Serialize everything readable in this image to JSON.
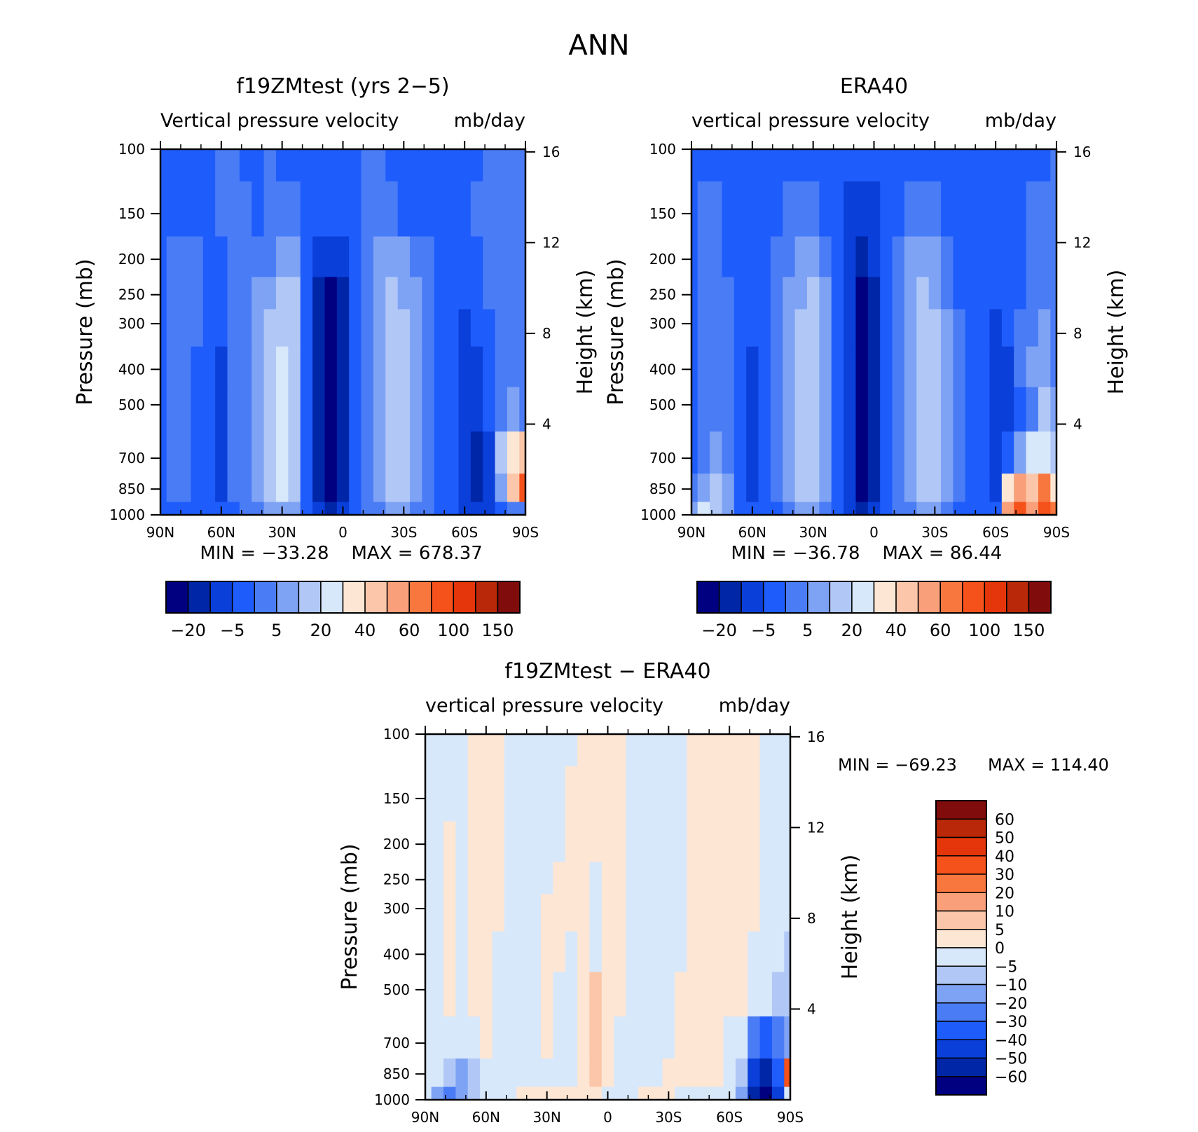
{
  "figure": {
    "title": "ANN"
  },
  "colors": {
    "model_palette": [
      "#000080",
      "#0026a8",
      "#0a3fd9",
      "#1f5cfc",
      "#4a7cf6",
      "#7fa3f4",
      "#b1c8f7",
      "#d8e8fb",
      "#fde6d3",
      "#fbc6a9",
      "#f9a07a",
      "#f8773f",
      "#f5511b",
      "#e4360a",
      "#b92808",
      "#810c0c"
    ],
    "diff_palette": [
      "#000080",
      "#0026a8",
      "#0a3fd9",
      "#1f5cfc",
      "#4a7cf6",
      "#7fa3f4",
      "#b1c8f7",
      "#d8e8fb",
      "#fde6d3",
      "#fbc6a9",
      "#f9a07a",
      "#f8773f",
      "#f5511b",
      "#e4360a",
      "#b92808",
      "#810c0c"
    ],
    "missing": "#ffffff"
  },
  "chart_data": [
    {
      "type": "heatmap",
      "title": "f19ZMtest (yrs 2−5)",
      "subtitle_left": "Vertical pressure velocity",
      "subtitle_right": "mb/day",
      "ylabel": "Pressure (mb)",
      "ylabel_right": "Height (km)",
      "x_ticks": [
        "90N",
        "60N",
        "30N",
        "0",
        "30S",
        "60S",
        "90S"
      ],
      "y_ticks": [
        "100",
        "150",
        "200",
        "250",
        "300",
        "400",
        "500",
        "700",
        "850",
        "1000"
      ],
      "y_right_ticks": [
        "16",
        "12",
        "8",
        "4"
      ],
      "min_label": "MIN = −33.28",
      "max_label": "MAX = 678.37",
      "colorbar_labels": [
        "−20",
        "−5",
        "5",
        "20",
        "40",
        "60",
        "100",
        "150"
      ],
      "latitudes": [
        90,
        84,
        78,
        72,
        66,
        60,
        54,
        48,
        42,
        36,
        30,
        24,
        18,
        12,
        6,
        0,
        -6,
        -12,
        -18,
        -24,
        -30,
        -36,
        -42,
        -48,
        -54,
        -60,
        -66,
        -72,
        -78,
        -84,
        -90
      ],
      "pressure_levels": [
        100,
        150,
        200,
        250,
        300,
        400,
        500,
        700,
        850,
        1000
      ],
      "bin_index": [
        [
          3,
          3,
          3,
          3,
          3,
          4,
          4,
          3,
          3,
          4,
          3,
          3,
          3,
          3,
          3,
          3,
          3,
          4,
          4,
          3,
          3,
          3,
          3,
          3,
          3,
          3,
          3,
          4,
          4,
          4,
          4
        ],
        [
          3,
          3,
          3,
          3,
          3,
          4,
          4,
          4,
          3,
          4,
          4,
          4,
          3,
          3,
          3,
          3,
          3,
          4,
          4,
          4,
          3,
          3,
          3,
          3,
          3,
          3,
          4,
          4,
          4,
          4,
          4
        ],
        [
          3,
          4,
          4,
          4,
          3,
          3,
          4,
          4,
          4,
          4,
          5,
          5,
          3,
          2,
          2,
          2,
          3,
          4,
          5,
          5,
          5,
          4,
          4,
          3,
          3,
          3,
          3,
          4,
          4,
          4,
          4
        ],
        [
          3,
          4,
          4,
          4,
          3,
          3,
          4,
          4,
          5,
          5,
          6,
          6,
          3,
          1,
          0,
          1,
          3,
          4,
          5,
          6,
          5,
          5,
          4,
          3,
          3,
          3,
          3,
          4,
          4,
          4,
          4
        ],
        [
          3,
          4,
          4,
          4,
          3,
          3,
          4,
          4,
          5,
          6,
          6,
          6,
          3,
          1,
          0,
          1,
          3,
          4,
          5,
          6,
          6,
          5,
          4,
          3,
          3,
          2,
          3,
          3,
          4,
          4,
          4
        ],
        [
          3,
          4,
          4,
          3,
          3,
          2,
          4,
          4,
          5,
          6,
          7,
          6,
          3,
          1,
          0,
          1,
          3,
          4,
          5,
          6,
          6,
          5,
          4,
          3,
          3,
          2,
          2,
          3,
          4,
          4,
          4
        ],
        [
          3,
          4,
          4,
          3,
          3,
          2,
          4,
          4,
          5,
          6,
          7,
          6,
          3,
          1,
          0,
          1,
          3,
          4,
          5,
          6,
          6,
          5,
          4,
          3,
          3,
          2,
          2,
          3,
          4,
          5,
          4
        ],
        [
          3,
          4,
          4,
          3,
          3,
          2,
          4,
          4,
          5,
          6,
          7,
          6,
          3,
          1,
          0,
          1,
          3,
          4,
          5,
          6,
          6,
          5,
          4,
          3,
          3,
          2,
          1,
          2,
          6,
          8,
          9
        ],
        [
          3,
          4,
          4,
          3,
          3,
          2,
          4,
          4,
          5,
          6,
          7,
          6,
          3,
          1,
          0,
          1,
          3,
          4,
          5,
          6,
          6,
          5,
          4,
          3,
          3,
          2,
          1,
          2,
          5,
          9,
          12
        ],
        [
          3,
          3,
          3,
          3,
          3,
          3,
          3,
          4,
          4,
          5,
          5,
          5,
          3,
          2,
          1,
          2,
          3,
          4,
          4,
          5,
          5,
          4,
          4,
          3,
          3,
          2,
          2,
          2,
          3,
          4,
          4
        ]
      ]
    },
    {
      "type": "heatmap",
      "title": "ERA40",
      "subtitle_left": "vertical pressure velocity",
      "subtitle_right": "mb/day",
      "ylabel": "Pressure (mb)",
      "ylabel_right": "Height (km)",
      "x_ticks": [
        "90N",
        "60N",
        "30N",
        "0",
        "30S",
        "60S",
        "90S"
      ],
      "y_ticks": [
        "100",
        "150",
        "200",
        "250",
        "300",
        "400",
        "500",
        "700",
        "850",
        "1000"
      ],
      "y_right_ticks": [
        "16",
        "12",
        "8",
        "4"
      ],
      "min_label": "MIN = −36.78",
      "max_label": "MAX =  86.44",
      "colorbar_labels": [
        "−20",
        "−5",
        "5",
        "20",
        "40",
        "60",
        "100",
        "150"
      ],
      "latitudes": [
        90,
        84,
        78,
        72,
        66,
        60,
        54,
        48,
        42,
        36,
        30,
        24,
        18,
        12,
        6,
        0,
        -6,
        -12,
        -18,
        -24,
        -30,
        -36,
        -42,
        -48,
        -54,
        -60,
        -66,
        -72,
        -78,
        -84,
        -90
      ],
      "pressure_levels": [
        100,
        150,
        200,
        250,
        300,
        400,
        500,
        700,
        850,
        1000
      ],
      "bin_index": [
        [
          3,
          3,
          3,
          3,
          3,
          3,
          3,
          3,
          3,
          3,
          3,
          3,
          3,
          3,
          3,
          3,
          3,
          3,
          3,
          3,
          3,
          3,
          3,
          3,
          3,
          3,
          3,
          3,
          3,
          3,
          4
        ],
        [
          3,
          4,
          4,
          3,
          3,
          3,
          3,
          3,
          4,
          4,
          4,
          3,
          3,
          2,
          2,
          2,
          3,
          3,
          4,
          4,
          4,
          3,
          3,
          3,
          3,
          3,
          3,
          3,
          4,
          4,
          4
        ],
        [
          3,
          4,
          4,
          3,
          3,
          3,
          3,
          4,
          4,
          5,
          5,
          4,
          3,
          2,
          1,
          2,
          3,
          4,
          5,
          5,
          5,
          4,
          3,
          3,
          3,
          3,
          3,
          3,
          4,
          4,
          4
        ],
        [
          3,
          4,
          4,
          4,
          3,
          3,
          3,
          4,
          5,
          5,
          6,
          5,
          3,
          2,
          0,
          1,
          3,
          4,
          5,
          6,
          5,
          4,
          3,
          3,
          3,
          3,
          3,
          3,
          4,
          4,
          4
        ],
        [
          3,
          4,
          4,
          4,
          3,
          3,
          3,
          4,
          5,
          6,
          6,
          5,
          3,
          2,
          0,
          1,
          3,
          4,
          5,
          6,
          6,
          5,
          4,
          3,
          3,
          2,
          3,
          4,
          4,
          5,
          4
        ],
        [
          3,
          4,
          4,
          4,
          3,
          2,
          3,
          4,
          5,
          6,
          6,
          5,
          3,
          2,
          0,
          1,
          3,
          4,
          5,
          6,
          6,
          5,
          4,
          3,
          3,
          2,
          2,
          4,
          5,
          5,
          4
        ],
        [
          3,
          4,
          4,
          4,
          3,
          2,
          3,
          4,
          5,
          6,
          6,
          5,
          3,
          2,
          0,
          1,
          3,
          4,
          5,
          6,
          6,
          5,
          4,
          3,
          3,
          2,
          2,
          3,
          4,
          6,
          5
        ],
        [
          3,
          4,
          5,
          4,
          3,
          2,
          3,
          4,
          5,
          6,
          6,
          5,
          3,
          2,
          0,
          1,
          3,
          4,
          5,
          6,
          6,
          5,
          4,
          3,
          3,
          2,
          3,
          5,
          7,
          7,
          6
        ],
        [
          4,
          5,
          6,
          5,
          3,
          2,
          3,
          4,
          5,
          6,
          6,
          5,
          3,
          2,
          0,
          1,
          3,
          4,
          5,
          6,
          6,
          5,
          4,
          3,
          3,
          2,
          8,
          10,
          9,
          11,
          8
        ],
        [
          5,
          7,
          6,
          5,
          3,
          3,
          3,
          3,
          4,
          5,
          5,
          4,
          3,
          2,
          1,
          2,
          3,
          4,
          4,
          5,
          5,
          4,
          3,
          3,
          3,
          3,
          10,
          12,
          10,
          12,
          11
        ]
      ]
    },
    {
      "type": "heatmap",
      "title": "f19ZMtest − ERA40",
      "subtitle_left": "vertical pressure velocity",
      "subtitle_right": "mb/day",
      "ylabel": "Pressure (mb)",
      "ylabel_right": "Height (km)",
      "x_ticks": [
        "90N",
        "60N",
        "30N",
        "0",
        "30S",
        "60S",
        "90S"
      ],
      "y_ticks": [
        "100",
        "150",
        "200",
        "250",
        "300",
        "400",
        "500",
        "700",
        "850",
        "1000"
      ],
      "y_right_ticks": [
        "16",
        "12",
        "8",
        "4"
      ],
      "min_label": "MIN = −69.23",
      "max_label": "MAX = 114.40",
      "colorbar_labels": [
        "60",
        "50",
        "40",
        "30",
        "20",
        "10",
        "5",
        "0",
        "−5",
        "−10",
        "−20",
        "−30",
        "−40",
        "−50",
        "−60"
      ],
      "latitudes": [
        90,
        84,
        78,
        72,
        66,
        60,
        54,
        48,
        42,
        36,
        30,
        24,
        18,
        12,
        6,
        0,
        -6,
        -12,
        -18,
        -24,
        -30,
        -36,
        -42,
        -48,
        -54,
        -60,
        -66,
        -72,
        -78,
        -84,
        -90
      ],
      "pressure_levels": [
        100,
        150,
        200,
        250,
        300,
        400,
        500,
        700,
        850,
        1000
      ],
      "bin_index": [
        [
          7,
          7,
          7,
          7,
          8,
          8,
          8,
          7,
          7,
          7,
          7,
          7,
          7,
          8,
          8,
          8,
          8,
          7,
          7,
          7,
          7,
          7,
          8,
          8,
          8,
          8,
          8,
          8,
          7,
          7,
          7
        ],
        [
          7,
          7,
          7,
          7,
          8,
          8,
          8,
          7,
          7,
          7,
          7,
          7,
          8,
          8,
          8,
          8,
          8,
          7,
          7,
          7,
          7,
          7,
          8,
          8,
          8,
          8,
          8,
          8,
          7,
          7,
          7
        ],
        [
          7,
          7,
          8,
          7,
          8,
          8,
          8,
          7,
          7,
          7,
          7,
          7,
          8,
          8,
          8,
          8,
          8,
          7,
          7,
          7,
          7,
          7,
          8,
          8,
          8,
          8,
          8,
          8,
          7,
          7,
          7
        ],
        [
          7,
          7,
          8,
          7,
          8,
          8,
          8,
          7,
          7,
          7,
          7,
          8,
          8,
          8,
          7,
          8,
          8,
          7,
          7,
          7,
          7,
          7,
          8,
          8,
          8,
          8,
          8,
          8,
          7,
          7,
          7
        ],
        [
          7,
          7,
          8,
          7,
          8,
          8,
          8,
          7,
          7,
          7,
          8,
          8,
          8,
          8,
          7,
          8,
          8,
          7,
          7,
          7,
          7,
          7,
          8,
          8,
          8,
          8,
          8,
          8,
          7,
          7,
          7
        ],
        [
          7,
          7,
          8,
          7,
          8,
          8,
          7,
          7,
          7,
          7,
          8,
          8,
          7,
          8,
          7,
          8,
          8,
          7,
          7,
          7,
          7,
          7,
          8,
          8,
          8,
          8,
          8,
          7,
          7,
          7,
          6
        ],
        [
          7,
          7,
          8,
          7,
          8,
          8,
          7,
          7,
          7,
          7,
          8,
          7,
          7,
          8,
          9,
          8,
          8,
          7,
          7,
          7,
          7,
          8,
          8,
          8,
          8,
          8,
          8,
          7,
          7,
          6,
          6
        ],
        [
          7,
          7,
          7,
          7,
          7,
          8,
          7,
          7,
          7,
          7,
          8,
          7,
          7,
          8,
          9,
          8,
          7,
          7,
          7,
          7,
          7,
          8,
          8,
          8,
          8,
          7,
          7,
          4,
          3,
          4,
          5
        ],
        [
          7,
          7,
          6,
          5,
          6,
          7,
          7,
          7,
          7,
          7,
          7,
          7,
          7,
          8,
          9,
          8,
          7,
          7,
          7,
          7,
          8,
          8,
          8,
          8,
          8,
          7,
          6,
          2,
          1,
          3,
          12
        ],
        [
          7,
          5,
          4,
          5,
          6,
          7,
          7,
          7,
          8,
          8,
          8,
          8,
          8,
          8,
          8,
          7,
          7,
          7,
          8,
          8,
          8,
          7,
          7,
          7,
          7,
          7,
          5,
          1,
          0,
          2,
          7
        ]
      ]
    }
  ]
}
